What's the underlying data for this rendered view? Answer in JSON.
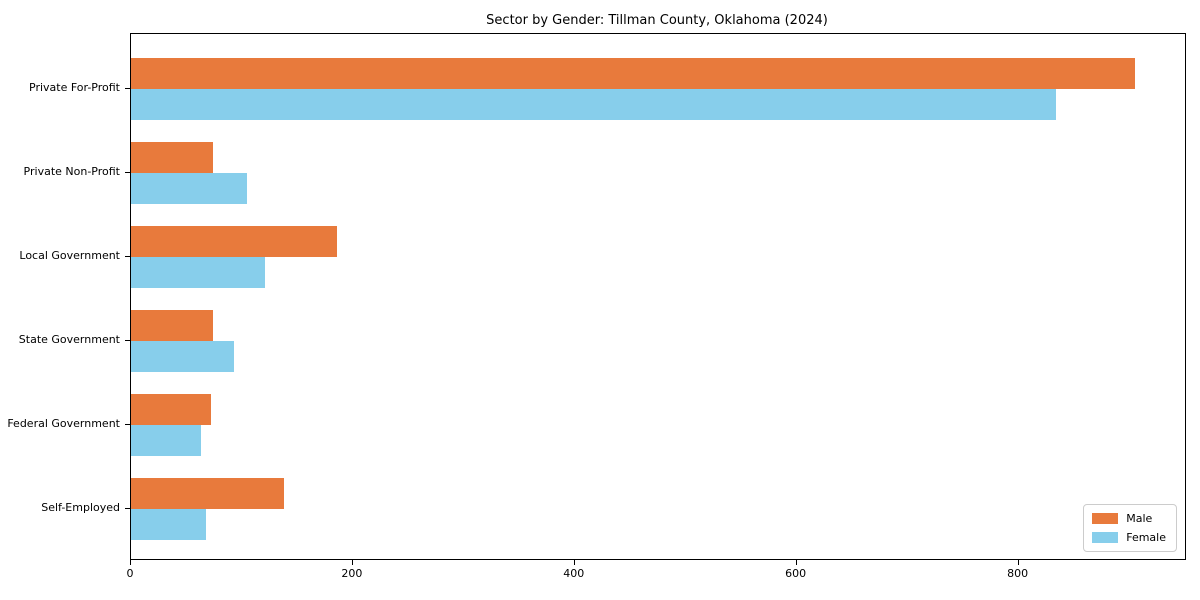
{
  "chart_data": {
    "type": "bar",
    "orientation": "horizontal",
    "title": "Sector by Gender: Tillman County, Oklahoma (2024)",
    "categories": [
      "Private For-Profit",
      "Private Non-Profit",
      "Local Government",
      "State Government",
      "Federal Government",
      "Self-Employed"
    ],
    "series": [
      {
        "name": "Male",
        "color": "#e87a3c",
        "values": [
          905,
          74,
          186,
          74,
          72,
          138
        ]
      },
      {
        "name": "Female",
        "color": "#87ceeb",
        "values": [
          834,
          105,
          121,
          93,
          63,
          68
        ]
      }
    ],
    "xlabel": "",
    "ylabel": "",
    "xlim": [
      0,
      950
    ],
    "xticks": [
      0,
      200,
      400,
      600,
      800
    ],
    "grid": false,
    "legend_position": "lower right",
    "frame": "full-box",
    "background_color": "#ffffff",
    "spine_color": "#000000"
  }
}
